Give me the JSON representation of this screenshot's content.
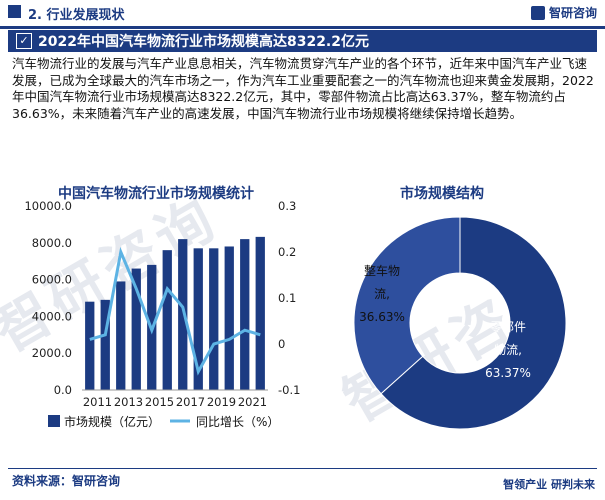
{
  "header": {
    "section_title": "2. 行业发展现状",
    "logo_text": "智研咨询"
  },
  "banner": {
    "title": "2022年中国汽车物流行业市场规模高达8322.2亿元"
  },
  "paragraph": "汽车物流行业的发展与汽车产业息息相关，汽车物流贯穿汽车产业的各个环节，近年来中国汽车产业飞速发展，已成为全球最大的汽车市场之一，作为汽车工业重要配套之一的汽车物流也迎来黄金发展期，2022年中国汽车物流行业市场规模高达8322.2亿元，其中，零部件物流占比高达63.37%，整车物流约占36.63%，未来随着汽车产业的高速发展，中国汽车物流行业市场规模将继续保持增长趋势。",
  "watermark": "智研咨询",
  "footer": {
    "source": "资料来源：智研咨询",
    "slogan": "智领产业  研判未来"
  },
  "colors": {
    "brand": "#1c3b82",
    "line": "#5db3e4",
    "donut_inner": "#2e4f9e"
  },
  "chart_data": [
    {
      "type": "bar",
      "title": "中国汽车物流行业市场规模统计",
      "categories": [
        "2011",
        "2012",
        "2013",
        "2014",
        "2015",
        "2016",
        "2017",
        "2018",
        "2019",
        "2020",
        "2021",
        "2022"
      ],
      "x_tick_labels": [
        "2011",
        "2013",
        "2015",
        "2017",
        "2019",
        "2021"
      ],
      "y_ticks": [
        "0.0",
        "2000.0",
        "4000.0",
        "6000.0",
        "8000.0",
        "10000.0"
      ],
      "y2_ticks": [
        "-0.1",
        "0",
        "0.1",
        "0.2",
        "0.3"
      ],
      "ylim": [
        0,
        10000
      ],
      "y2lim": [
        -0.1,
        0.3
      ],
      "series": [
        {
          "name": "市场规模（亿元）",
          "type": "bar",
          "values": [
            4800,
            4900,
            5900,
            6600,
            6800,
            7600,
            8200,
            7700,
            7700,
            7800,
            8200,
            8322.2
          ]
        },
        {
          "name": "同比增长（%）",
          "type": "line",
          "axis": "right",
          "values": [
            0.01,
            0.02,
            0.2,
            0.12,
            0.03,
            0.12,
            0.08,
            -0.06,
            0.0,
            0.01,
            0.03,
            0.02
          ]
        }
      ],
      "legend": "bottom"
    },
    {
      "type": "pie",
      "title": "市场规模结构",
      "style": "donut",
      "slices": [
        {
          "label_lines": [
            "整车物",
            "流,",
            "36.63%"
          ],
          "value": 36.63
        },
        {
          "label_lines": [
            "零部件",
            "物流,",
            "63.37%"
          ],
          "value": 63.37
        }
      ]
    }
  ]
}
